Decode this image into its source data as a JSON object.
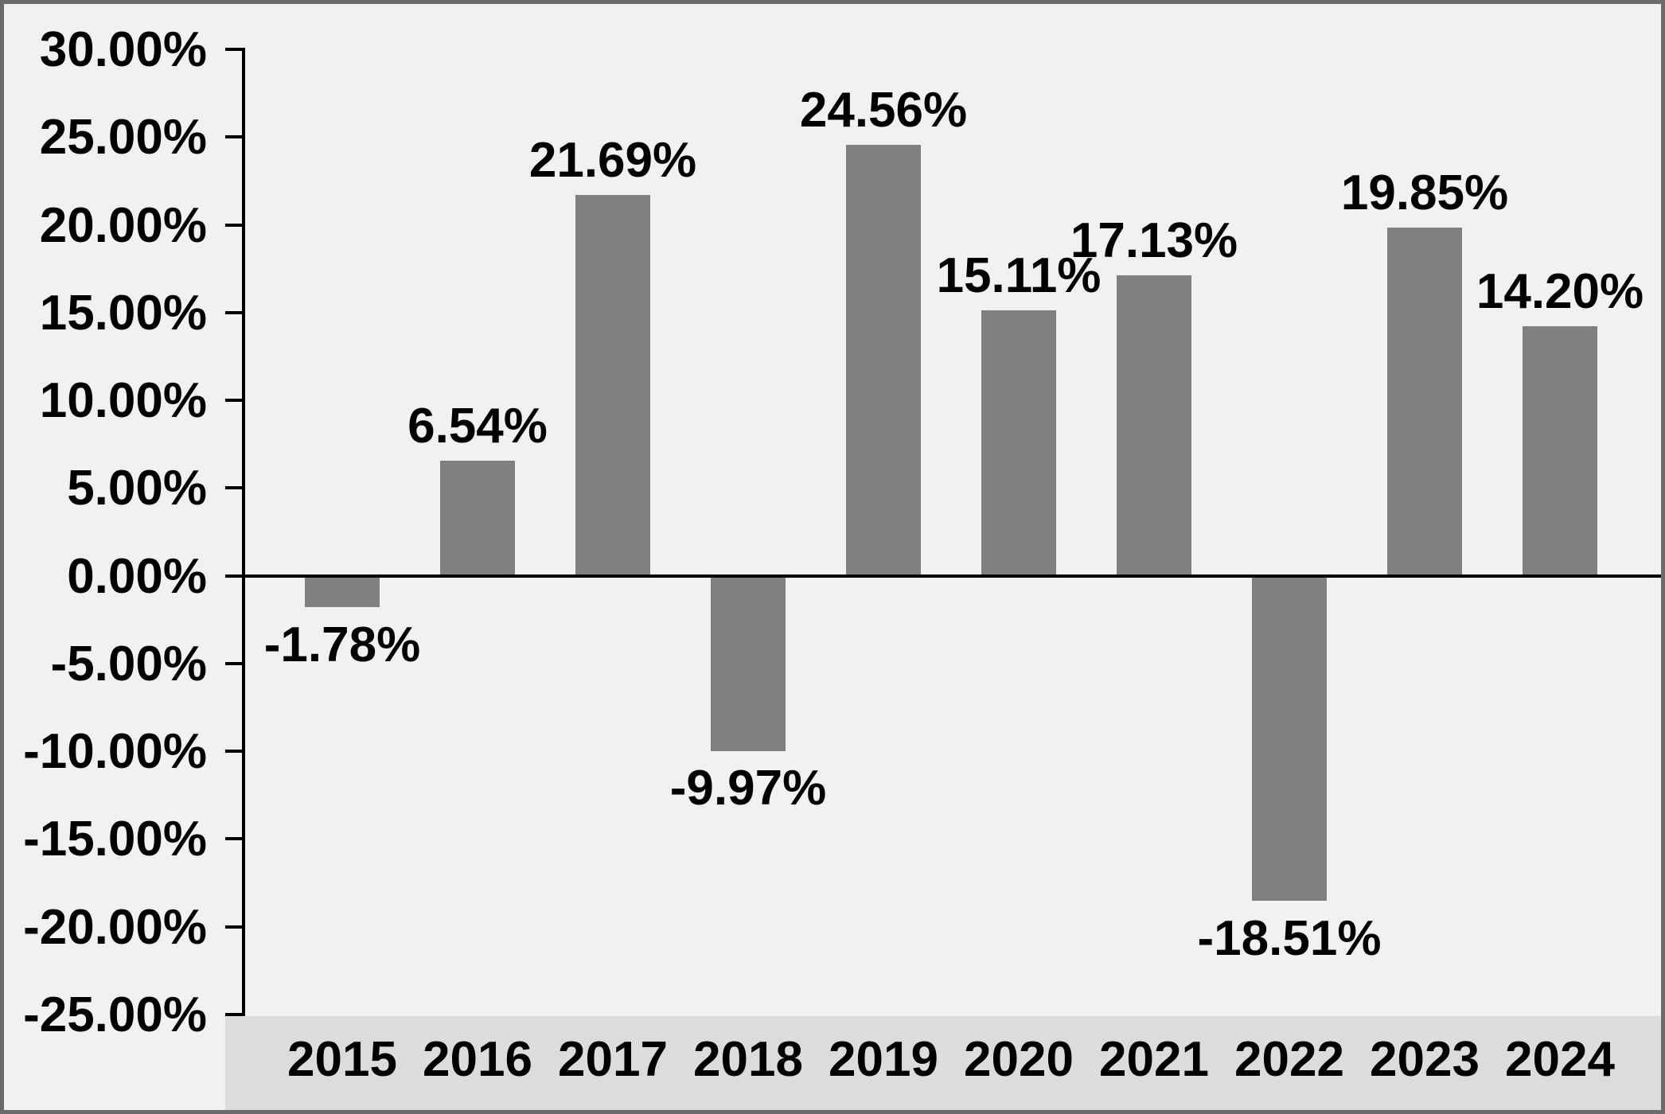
{
  "chart_data": {
    "type": "bar",
    "title": "",
    "xlabel": "",
    "ylabel": "",
    "categories": [
      "2015",
      "2016",
      "2017",
      "2018",
      "2019",
      "2020",
      "2021",
      "2022",
      "2023",
      "2024"
    ],
    "values": [
      -1.78,
      6.54,
      21.69,
      -9.97,
      24.56,
      15.11,
      17.13,
      -18.51,
      19.85,
      14.2
    ],
    "value_labels": [
      "-1.78%",
      "6.54%",
      "21.69%",
      "-9.97%",
      "24.56%",
      "15.11%",
      "17.13%",
      "-18.51%",
      "19.85%",
      "14.20%"
    ],
    "ylim": [
      -25,
      30
    ],
    "ytick_step": 5,
    "ytick_values": [
      30,
      25,
      20,
      15,
      10,
      5,
      0,
      -5,
      -10,
      -15,
      -20,
      -25
    ],
    "ytick_labels": [
      "30.00%",
      "25.00%",
      "20.00%",
      "15.00%",
      "10.00%",
      "5.00%",
      "0.00%",
      "-5.00%",
      "-10.00%",
      "-15.00%",
      "-20.00%",
      "-25.00%"
    ],
    "grid": false,
    "legend": false,
    "data_labels_shown": true,
    "colors": {
      "bar": "#7f7f7f",
      "text": "#000000",
      "axis": "#000000",
      "background": "#f1f1f0",
      "x_band": "#dcdcdc",
      "border": "#6b6b6b"
    }
  }
}
